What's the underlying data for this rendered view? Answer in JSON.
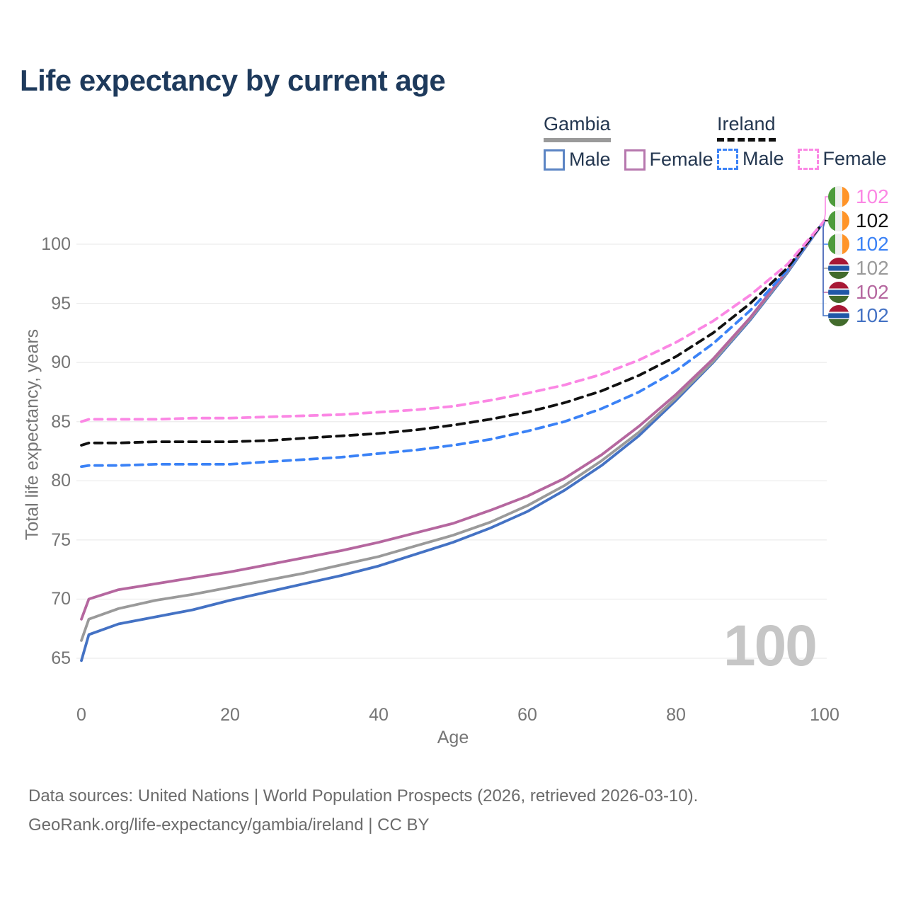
{
  "title": "Life expectancy by current age",
  "legend": {
    "gambia": {
      "label": "Gambia",
      "male": "Male",
      "female": "Female"
    },
    "ireland": {
      "label": "Ireland",
      "male": "Male",
      "female": "Female"
    }
  },
  "watermark_age": "100",
  "footer": {
    "line1": "Data sources: United Nations | World Population Prospects (2026, retrieved 2026-03-10).",
    "line2": "GeoRank.org/life-expectancy/gambia/ireland | CC BY"
  },
  "colors": {
    "title": "#1e3a5c",
    "gambia_male": "#4472c4",
    "gambia_total": "#9a9a9a",
    "gambia_female": "#b5679f",
    "ireland_male": "#3b82f6",
    "ireland_total": "#111111",
    "ireland_female": "#fb87e4",
    "gridline": "#ececec",
    "tick_text": "#757575",
    "watermark": "#c6c6c6"
  },
  "end_labels": [
    {
      "series": "ireland-female",
      "flag": "ireland",
      "value": "102",
      "color": "#fb87e4"
    },
    {
      "series": "ireland-both",
      "flag": "ireland",
      "value": "102",
      "color": "#111111"
    },
    {
      "series": "ireland-male",
      "flag": "ireland",
      "value": "102",
      "color": "#3b82f6"
    },
    {
      "series": "gambia-both",
      "flag": "gambia",
      "value": "102",
      "color": "#9a9a9a"
    },
    {
      "series": "gambia-female",
      "flag": "gambia",
      "value": "102",
      "color": "#b5679f"
    },
    {
      "series": "gambia-male",
      "flag": "gambia",
      "value": "102",
      "color": "#4472c4"
    }
  ],
  "chart_data": {
    "type": "line",
    "title": "Life expectancy by current age",
    "xlabel": "Age",
    "ylabel": "Total life expectancy, years",
    "x_range": [
      0,
      100
    ],
    "y_range": [
      65,
      100
    ],
    "x_ticks": [
      0,
      20,
      40,
      60,
      80,
      100
    ],
    "y_ticks": [
      65,
      70,
      75,
      80,
      85,
      90,
      95,
      100
    ],
    "grid": "horizontal",
    "legend_position": "top-right",
    "x": [
      0,
      1,
      5,
      10,
      15,
      20,
      25,
      30,
      35,
      40,
      45,
      50,
      55,
      60,
      65,
      70,
      75,
      80,
      85,
      90,
      95,
      100
    ],
    "series": [
      {
        "id": "gambia-male",
        "name": "Gambia Male",
        "style": "solid",
        "color": "#4472c4",
        "values": [
          64.8,
          67.0,
          67.9,
          68.5,
          69.1,
          69.9,
          70.6,
          71.3,
          72.0,
          72.8,
          73.8,
          74.8,
          76.0,
          77.4,
          79.2,
          81.3,
          83.8,
          86.8,
          90.0,
          93.6,
          97.6,
          102
        ]
      },
      {
        "id": "gambia-both",
        "name": "Gambia Both sexes",
        "style": "solid",
        "color": "#9a9a9a",
        "values": [
          66.5,
          68.3,
          69.2,
          69.9,
          70.4,
          71.0,
          71.6,
          72.2,
          72.9,
          73.6,
          74.5,
          75.4,
          76.5,
          77.9,
          79.6,
          81.7,
          84.1,
          87.0,
          90.1,
          93.7,
          97.7,
          102
        ]
      },
      {
        "id": "gambia-female",
        "name": "Gambia Female",
        "style": "solid",
        "color": "#b5679f",
        "values": [
          68.3,
          70.0,
          70.8,
          71.3,
          71.8,
          72.3,
          72.9,
          73.5,
          74.1,
          74.8,
          75.6,
          76.4,
          77.5,
          78.7,
          80.2,
          82.2,
          84.6,
          87.3,
          90.3,
          93.8,
          97.8,
          102
        ]
      },
      {
        "id": "ireland-male",
        "name": "Ireland Male",
        "style": "dashed",
        "color": "#3b82f6",
        "values": [
          81.2,
          81.3,
          81.3,
          81.4,
          81.4,
          81.4,
          81.6,
          81.8,
          82.0,
          82.3,
          82.6,
          83.0,
          83.5,
          84.2,
          85.0,
          86.1,
          87.5,
          89.3,
          91.6,
          94.4,
          97.8,
          102
        ]
      },
      {
        "id": "ireland-both",
        "name": "Ireland Both sexes",
        "style": "dashed",
        "color": "#111111",
        "values": [
          83.0,
          83.2,
          83.2,
          83.3,
          83.3,
          83.3,
          83.4,
          83.6,
          83.8,
          84.0,
          84.3,
          84.7,
          85.2,
          85.8,
          86.6,
          87.6,
          88.9,
          90.5,
          92.5,
          95.0,
          98.0,
          102
        ]
      },
      {
        "id": "ireland-female",
        "name": "Ireland Female",
        "style": "dashed",
        "color": "#fb87e4",
        "values": [
          85.0,
          85.2,
          85.2,
          85.2,
          85.3,
          85.3,
          85.4,
          85.5,
          85.6,
          85.8,
          86.0,
          86.3,
          86.8,
          87.4,
          88.1,
          89.0,
          90.2,
          91.7,
          93.5,
          95.7,
          98.3,
          102
        ]
      }
    ]
  }
}
